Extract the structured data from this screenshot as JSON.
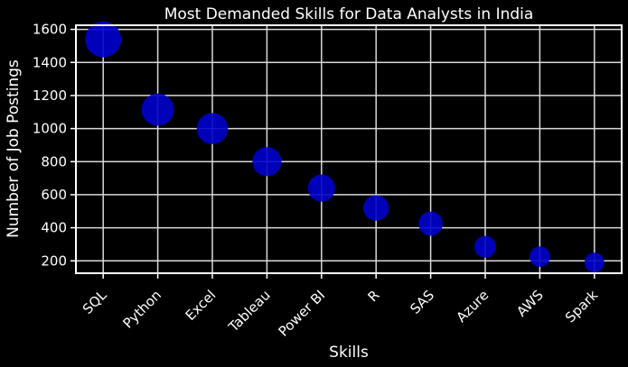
{
  "chart_data": {
    "type": "scatter",
    "title": "Most Demanded Skills for Data Analysts in India",
    "xlabel": "Skills",
    "ylabel": "Number of Job Postings",
    "categories": [
      "SQL",
      "Python",
      "Excel",
      "Tableau",
      "Power BI",
      "R",
      "SAS",
      "Azure",
      "AWS",
      "Spark"
    ],
    "values": [
      1540,
      1115,
      1000,
      800,
      640,
      520,
      425,
      285,
      225,
      190
    ],
    "ylim": [
      125,
      1625
    ],
    "yticks": [
      200,
      400,
      600,
      800,
      1000,
      1200,
      1400,
      1600
    ],
    "grid": true,
    "marker_color": "#0000cc",
    "background": "#000000",
    "text_color": "#ffffff",
    "grid_color": "#d9d9d9"
  }
}
